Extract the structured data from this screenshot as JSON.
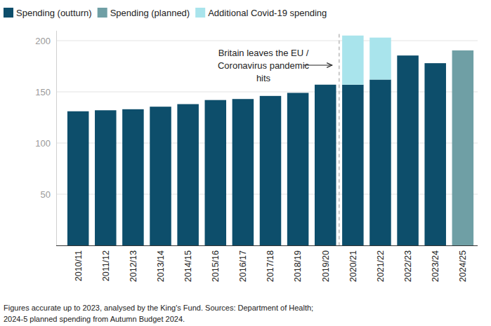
{
  "chart_data": {
    "type": "bar",
    "stacked": true,
    "grid": true,
    "legend": "top-left",
    "categories": [
      "2010/11",
      "2011/12",
      "2012/13",
      "2013/14",
      "2014/15",
      "2015/16",
      "2016/17",
      "2017/18",
      "2018/19",
      "2019/20",
      "2020/21",
      "2021/22",
      "2022/23",
      "2023/24",
      "2024/25"
    ],
    "series": [
      {
        "name": "Spending (outturn)",
        "color": "#0d4e6b",
        "values": [
          131,
          132,
          133,
          135.5,
          138,
          142,
          143,
          146,
          149,
          157,
          157,
          162,
          185.5,
          178,
          null
        ]
      },
      {
        "name": "Spending (planned)",
        "color": "#6f9fa5",
        "values": [
          null,
          null,
          null,
          null,
          null,
          null,
          null,
          null,
          null,
          null,
          null,
          null,
          null,
          null,
          190.5
        ]
      },
      {
        "name": "Additional Covid-19 spending",
        "color": "#a9e4ec",
        "values": [
          null,
          null,
          null,
          null,
          null,
          null,
          null,
          null,
          null,
          null,
          48,
          41,
          null,
          null,
          null
        ]
      }
    ],
    "ylim": [
      0,
      210
    ],
    "yticks": [
      50,
      100,
      150,
      200
    ],
    "annotation": [
      "Britain leaves the EU /",
      "Coronavirus pandemic",
      "hits"
    ],
    "caption": [
      "Figures accurate up to 2023, analysed by the King's Fund. Sources: Department of Health;",
      "2024-5 planned spending from Autumn Budget 2024."
    ]
  }
}
